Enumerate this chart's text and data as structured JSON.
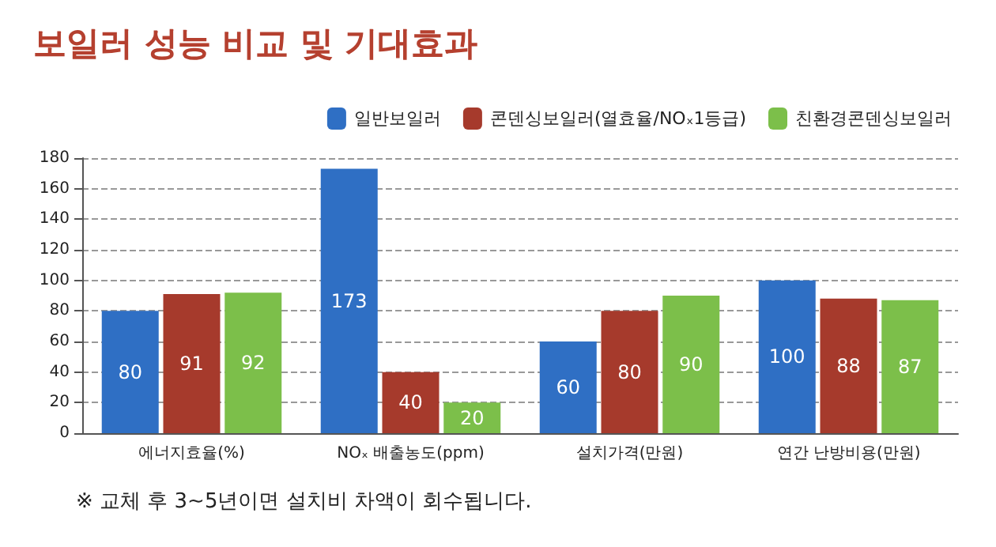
{
  "chart_data": {
    "type": "bar",
    "title": "보일러 성능 비교 및 기대효과",
    "categories": [
      "에너지효율(%)",
      "NOₓ 배출농도(ppm)",
      "설치가격(만원)",
      "연간 난방비용(만원)"
    ],
    "series": [
      {
        "name": "일반보일러",
        "color": "#2f6fc4",
        "values": [
          80,
          173,
          60,
          100
        ]
      },
      {
        "name": "콘덴싱보일러(열효율/NOₓ1등급)",
        "color": "#a63a2c",
        "values": [
          91,
          40,
          80,
          88
        ]
      },
      {
        "name": "친환경콘덴싱보일러",
        "color": "#7cbf4a",
        "values": [
          92,
          20,
          90,
          87
        ]
      }
    ],
    "ylim": [
      0,
      180
    ],
    "yticks": [
      0,
      20,
      40,
      60,
      80,
      100,
      120,
      140,
      160,
      180
    ],
    "grid": "y",
    "legend": "top right",
    "data_labels": true,
    "annotations": [
      "※ 교체 후 3~5년이면 설치비 차액이 회수됩니다."
    ]
  }
}
